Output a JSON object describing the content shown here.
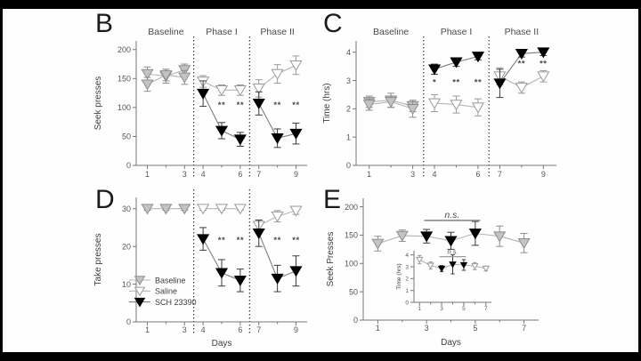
{
  "figure": {
    "description": "Four-panel behavioral pharmacology figure (seek/take presses and time) across Baseline, Phase I and Phase II",
    "background_color": "#fefefe",
    "frame_color": "#000000"
  },
  "colors": {
    "baseline_fill": "#c3c3c3",
    "baseline_stroke": "#8d8d8d",
    "saline_fill": "#ffffff",
    "saline_stroke": "#9a9a9a",
    "sch_fill": "#000000",
    "sch_stroke": "#000000",
    "line_gray": "#b5b5b5",
    "line_dark": "#7d7d7d",
    "err_dark": "#3a3a3a",
    "axis": "#767676",
    "tick_text": "#555555",
    "label_text": "#3e3e3e",
    "section_text": "#4a4a4a",
    "star_text": "#4a4a4a",
    "ns_line": "#929292",
    "ns_text": "#4a4a4a",
    "divider": "#1a1a1a"
  },
  "legend": {
    "items": [
      {
        "label": "Baseline",
        "marker": "baseline"
      },
      {
        "label": "Saline",
        "marker": "saline"
      },
      {
        "label": "SCH 23390",
        "marker": "sch"
      }
    ]
  },
  "chart_data": [
    {
      "panel": "B",
      "type": "line",
      "title": "",
      "ylabel": "Seek presses",
      "xlabel": "",
      "ylim": [
        0,
        215
      ],
      "yticks": [
        0,
        50,
        100,
        150,
        200
      ],
      "xlim": [
        0.4,
        9.6
      ],
      "xticks": [
        1,
        3,
        4,
        6,
        7,
        9
      ],
      "xminor": [
        2,
        5,
        8
      ],
      "sections": [
        {
          "label": "Baseline",
          "mid": 2
        },
        {
          "label": "Phase I",
          "mid": 5
        },
        {
          "label": "Phase II",
          "mid": 8
        }
      ],
      "dividers": [
        3.5,
        6.5
      ],
      "series": [
        {
          "name": "Baseline group 1",
          "marker": "baseline",
          "x": [
            1,
            2,
            3
          ],
          "y": [
            158,
            154,
            165
          ],
          "err": [
            12,
            12,
            10
          ]
        },
        {
          "name": "Baseline group 2",
          "marker": "baseline",
          "x": [
            1,
            2,
            3
          ],
          "y": [
            140,
            156,
            152
          ],
          "err": [
            12,
            10,
            12
          ]
        },
        {
          "name": "Saline Phase I",
          "marker": "saline",
          "x": [
            4,
            5,
            6
          ],
          "y": [
            145,
            130,
            130
          ],
          "err": [
            10,
            9,
            9
          ]
        },
        {
          "name": "SCH 23390 Phase I",
          "marker": "sch",
          "x": [
            4,
            5,
            6
          ],
          "y": [
            124,
            60,
            45
          ],
          "err": [
            22,
            14,
            12
          ]
        },
        {
          "name": "Saline Phase II",
          "marker": "saline",
          "x": [
            7,
            8,
            9
          ],
          "y": [
            133,
            158,
            173
          ],
          "err": [
            15,
            16,
            16
          ]
        },
        {
          "name": "SCH 23390 Phase II",
          "marker": "sch",
          "x": [
            7,
            8,
            9
          ],
          "y": [
            107,
            47,
            55
          ],
          "err": [
            20,
            16,
            18
          ]
        }
      ],
      "annotations": [
        {
          "text": "**",
          "x": 5,
          "y": 100
        },
        {
          "text": "**",
          "x": 6,
          "y": 100
        },
        {
          "text": "**",
          "x": 8,
          "y": 100
        },
        {
          "text": "**",
          "x": 9,
          "y": 100
        }
      ]
    },
    {
      "panel": "C",
      "type": "line",
      "title": "",
      "ylabel": "Time (hrs)",
      "xlabel": "",
      "ylim": [
        0,
        4.4
      ],
      "yticks": [
        0,
        1,
        2,
        3,
        4
      ],
      "xlim": [
        0.4,
        9.6
      ],
      "xticks": [
        1,
        3,
        4,
        6,
        7,
        9
      ],
      "xminor": [
        2,
        5,
        8
      ],
      "sections": [
        {
          "label": "Baseline",
          "mid": 2
        },
        {
          "label": "Phase I",
          "mid": 5
        },
        {
          "label": "Phase II",
          "mid": 8
        }
      ],
      "dividers": [
        3.5,
        6.5
      ],
      "series": [
        {
          "name": "Baseline group 1",
          "marker": "baseline",
          "x": [
            1,
            2,
            3
          ],
          "y": [
            2.25,
            2.3,
            2.1
          ],
          "err": [
            0.2,
            0.25,
            0.2
          ]
        },
        {
          "name": "Baseline group 2",
          "marker": "baseline",
          "x": [
            1,
            2,
            3
          ],
          "y": [
            2.15,
            2.25,
            2.0
          ],
          "err": [
            0.2,
            0.2,
            0.3
          ]
        },
        {
          "name": "SCH 23390 Phase I",
          "marker": "sch",
          "x": [
            4,
            5,
            6
          ],
          "y": [
            3.4,
            3.65,
            3.85
          ],
          "err": [
            0.18,
            0.15,
            0.12
          ]
        },
        {
          "name": "Saline Phase I",
          "marker": "saline",
          "x": [
            4,
            5,
            6
          ],
          "y": [
            2.2,
            2.15,
            2.05
          ],
          "err": [
            0.3,
            0.3,
            0.3
          ]
        },
        {
          "name": "Saline Phase II",
          "marker": "saline",
          "x": [
            7,
            8,
            9
          ],
          "y": [
            3.15,
            2.75,
            3.15
          ],
          "err": [
            0.3,
            0.2,
            0.2
          ]
        },
        {
          "name": "SCH 23390 Phase II",
          "marker": "sch",
          "x": [
            7,
            8,
            9
          ],
          "y": [
            2.9,
            3.95,
            4.0
          ],
          "err": [
            0.5,
            0.12,
            0.12
          ]
        }
      ],
      "annotations": [
        {
          "text": "*",
          "x": 4,
          "y": 2.85
        },
        {
          "text": "**",
          "x": 5,
          "y": 2.85
        },
        {
          "text": "**",
          "x": 6,
          "y": 2.85
        },
        {
          "text": "**",
          "x": 8,
          "y": 3.5
        },
        {
          "text": "**",
          "x": 9,
          "y": 3.5
        }
      ]
    },
    {
      "panel": "D",
      "type": "line",
      "title": "",
      "ylabel": "Take presses",
      "xlabel": "Days",
      "ylim": [
        0,
        33
      ],
      "yticks": [
        0,
        10,
        20,
        30
      ],
      "xlim": [
        0.4,
        9.6
      ],
      "xticks": [
        1,
        3,
        4,
        6,
        7,
        9
      ],
      "xminor": [
        2,
        5,
        8
      ],
      "dividers": [
        3.5,
        6.5
      ],
      "series": [
        {
          "name": "Baseline",
          "marker": "baseline",
          "x": [
            1,
            2,
            3
          ],
          "y": [
            30,
            30,
            30
          ],
          "err": [
            0.4,
            0.4,
            0.4
          ]
        },
        {
          "name": "Saline Phase I",
          "marker": "saline",
          "x": [
            4,
            5,
            6
          ],
          "y": [
            30,
            30,
            30
          ],
          "err": [
            0.4,
            0.4,
            0.4
          ]
        },
        {
          "name": "SCH 23390 Phase I",
          "marker": "sch",
          "x": [
            4,
            5,
            6
          ],
          "y": [
            22,
            13,
            11
          ],
          "err": [
            3,
            3.5,
            3
          ]
        },
        {
          "name": "Saline Phase II",
          "marker": "saline",
          "x": [
            7,
            8,
            9
          ],
          "y": [
            25.5,
            28,
            29.5
          ],
          "err": [
            1.5,
            1.5,
            1
          ]
        },
        {
          "name": "SCH 23390 Phase II",
          "marker": "sch",
          "x": [
            7,
            8,
            9
          ],
          "y": [
            23.5,
            11.5,
            13.5
          ],
          "err": [
            3.5,
            3.5,
            4
          ]
        }
      ],
      "annotations": [
        {
          "text": "**",
          "x": 5,
          "y": 21
        },
        {
          "text": "**",
          "x": 6,
          "y": 21
        },
        {
          "text": "**",
          "x": 8,
          "y": 21
        },
        {
          "text": "**",
          "x": 9,
          "y": 21
        }
      ],
      "show_legend": true
    },
    {
      "panel": "E",
      "type": "line",
      "title": "",
      "ylabel": "Seek Presses",
      "xlabel": "Days",
      "ylim": [
        0,
        215
      ],
      "yticks": [
        0,
        50,
        100,
        150,
        200
      ],
      "xlim": [
        0.4,
        7.6
      ],
      "xticks": [
        1,
        3,
        5,
        7
      ],
      "xminor": [
        2,
        4,
        6
      ],
      "series": [
        {
          "name": "Seek presses (SCH 23390 test days in black)",
          "marker": "mixed",
          "x": [
            1,
            2,
            3,
            4,
            5,
            6,
            7
          ],
          "y": [
            135,
            149,
            148,
            140,
            153,
            148,
            136
          ],
          "err": [
            13,
            10,
            12,
            15,
            21,
            18,
            17
          ],
          "point_markers": [
            "baseline",
            "baseline",
            "sch",
            "sch",
            "sch",
            "baseline",
            "baseline"
          ]
        }
      ],
      "ns_brackets": [
        {
          "text": "n.s.",
          "x1": 2.9,
          "x2": 5.2,
          "y": 176
        }
      ],
      "inset": {
        "ylabel": "Time (hrs)",
        "ylim": [
          0,
          4.35
        ],
        "yticks": [
          0,
          1,
          2,
          3,
          4
        ],
        "xlim": [
          0.5,
          7.5
        ],
        "xticks": [
          1,
          3,
          5,
          7
        ],
        "xminor": [
          2,
          4,
          6
        ],
        "series": [
          {
            "name": "Time (hrs) (SCH 23390 test days in black)",
            "marker": "mixed",
            "x": [
              1,
              2,
              3,
              4,
              5,
              6,
              7
            ],
            "y": [
              3.6,
              3.1,
              2.85,
              3.2,
              3.15,
              3.05,
              2.85
            ],
            "err": [
              0.35,
              0.3,
              0.25,
              0.8,
              0.45,
              0.3,
              0.2
            ],
            "point_markers": [
              "saline",
              "saline",
              "sch",
              "sch",
              "sch",
              "saline",
              "saline"
            ]
          }
        ],
        "ns_brackets": [
          {
            "text": "n.s.",
            "x1": 2.8,
            "x2": 5.2,
            "y": 3.85
          }
        ]
      }
    }
  ]
}
